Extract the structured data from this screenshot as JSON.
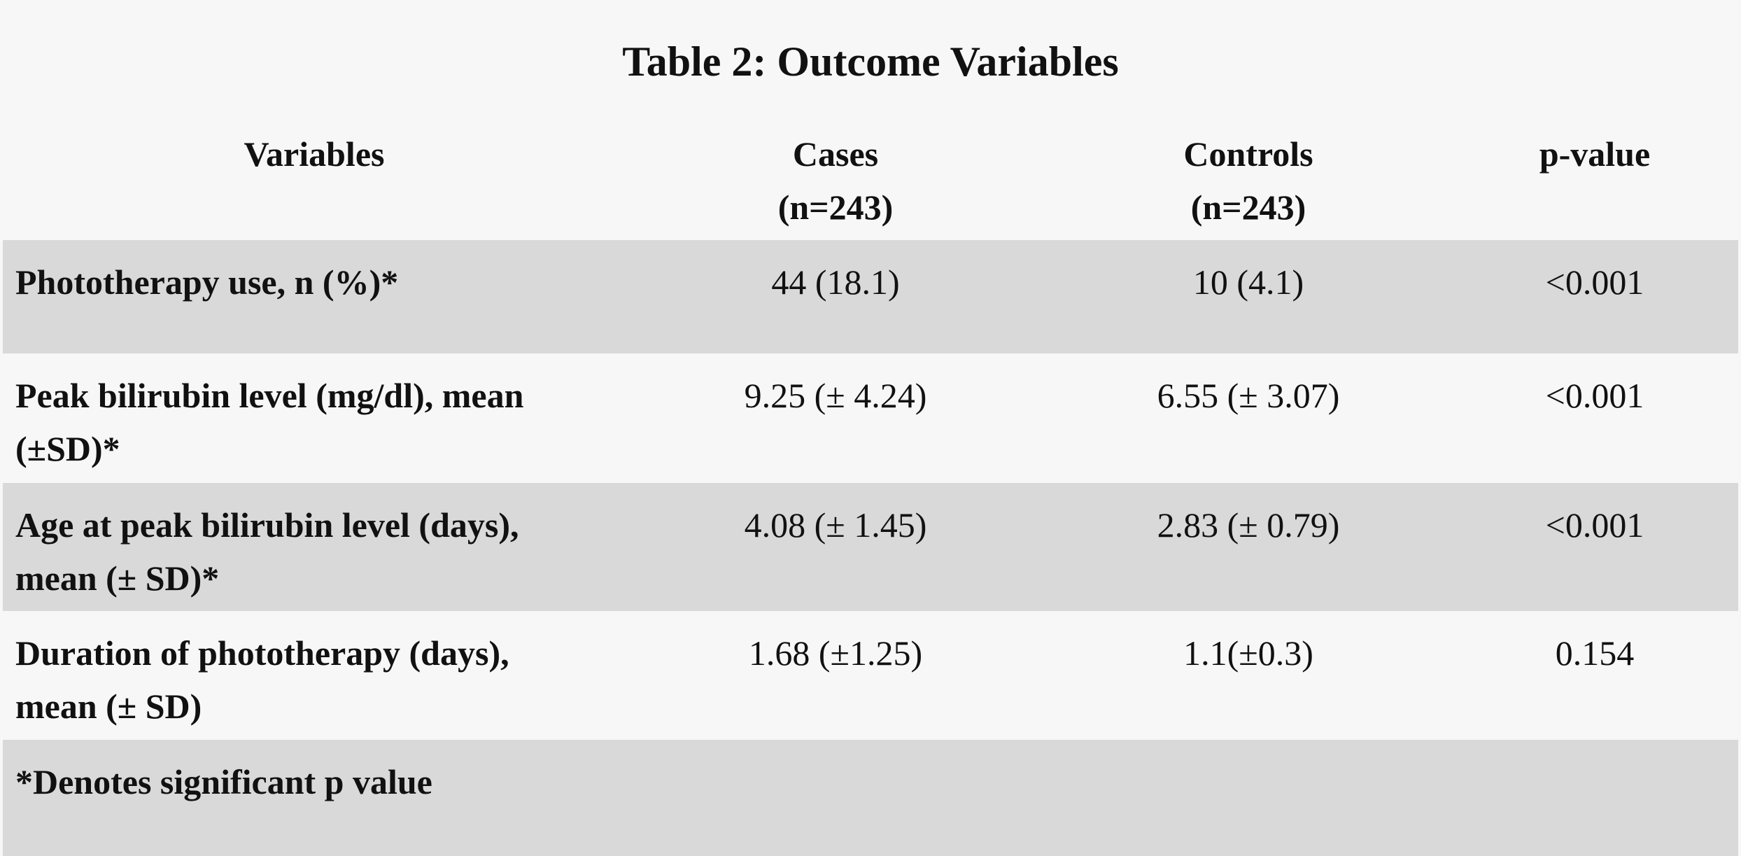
{
  "table": {
    "title": "Table 2: Outcome Variables",
    "headers": {
      "variables": "Variables",
      "cases_line1": "Cases",
      "cases_line2": "(n=243)",
      "controls_line1": "Controls",
      "controls_line2": "(n=243)",
      "p_value": "p-value"
    },
    "rows": [
      {
        "variable_line1": "Phototherapy use, n (%)*",
        "variable_line2": "",
        "cases": "44 (18.1)",
        "controls": "10 (4.1)",
        "p_value": "<0.001"
      },
      {
        "variable_line1": "Peak bilirubin level (mg/dl), mean",
        "variable_line2": "(±SD)*",
        "cases": "9.25 (± 4.24)",
        "controls": "6.55 (± 3.07)",
        "p_value": "<0.001"
      },
      {
        "variable_line1": "Age at peak bilirubin level (days),",
        "variable_line2": "mean (± SD)*",
        "cases": "4.08 (± 1.45)",
        "controls": "2.83 (± 0.79)",
        "p_value": "<0.001"
      },
      {
        "variable_line1": "Duration of phototherapy (days),",
        "variable_line2": "mean (± SD)",
        "cases": "1.68 (±1.25)",
        "controls": "1.1(±0.3)",
        "p_value": "0.154"
      }
    ],
    "footnote": "*Denotes significant p value"
  },
  "colors": {
    "background": "#f7f7f7",
    "shaded_row": "#d9d9d9",
    "text": "#111111"
  }
}
